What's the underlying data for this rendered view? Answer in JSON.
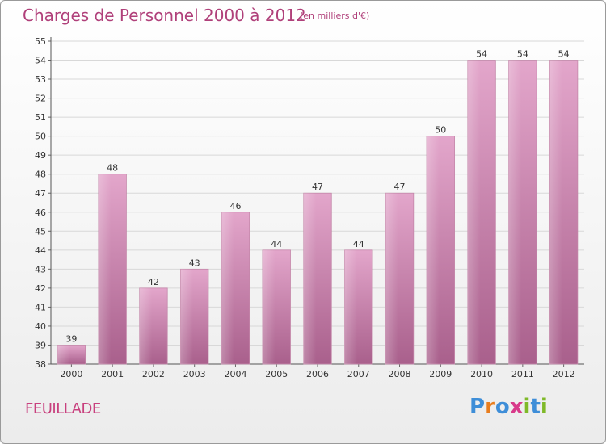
{
  "title": "Charges de Personnel 2000 à 2012",
  "subtitle": "(en milliers d'€)",
  "location": "FEUILLADE",
  "logo": {
    "letters": [
      "P",
      "r",
      "o",
      "x",
      "i",
      "t",
      "i"
    ],
    "colors": [
      "#3e8ed8",
      "#e87d1e",
      "#3e8ed8",
      "#d83a8a",
      "#7fb928",
      "#3e8ed8",
      "#7fb928"
    ]
  },
  "colors": {
    "bar": "#d98ab6",
    "bar_dark": "#b06592",
    "title": "#b0407a",
    "grid": "#dddddd"
  },
  "chart_data": {
    "type": "bar",
    "title": "Charges de Personnel 2000 à 2012",
    "subtitle": "(en milliers d'€)",
    "categories": [
      "2000",
      "2001",
      "2002",
      "2003",
      "2004",
      "2005",
      "2006",
      "2007",
      "2008",
      "2009",
      "2010",
      "2011",
      "2012"
    ],
    "values": [
      39,
      48,
      42,
      43,
      46,
      44,
      47,
      44,
      47,
      50,
      54,
      54,
      54
    ],
    "ylim": [
      38,
      55
    ],
    "yticks": [
      38,
      39,
      40,
      41,
      42,
      43,
      44,
      45,
      46,
      47,
      48,
      49,
      50,
      51,
      52,
      53,
      54,
      55
    ],
    "xlabel": "",
    "ylabel": "",
    "grid": true,
    "data_labels": true
  }
}
